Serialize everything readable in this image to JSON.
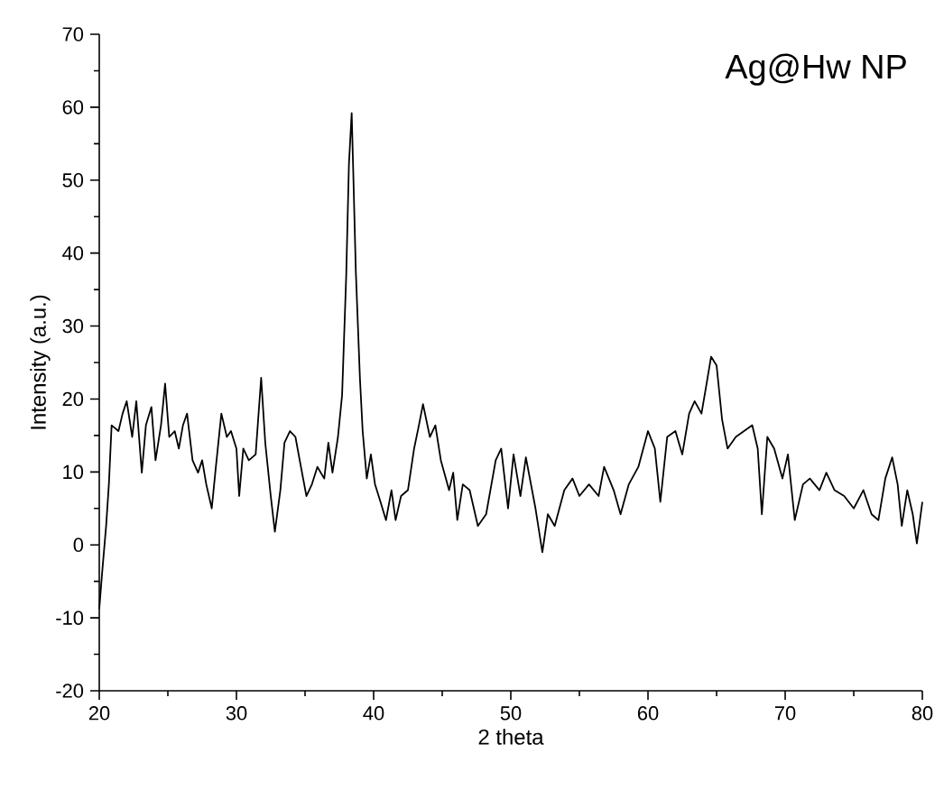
{
  "chart_data": {
    "type": "line",
    "xlabel": "2 theta",
    "ylabel": "Intensity (a.u.)",
    "annotations": [
      "Ag@Hw NP"
    ],
    "xlim": [
      20,
      80
    ],
    "ylim": [
      -20,
      70
    ],
    "xticks": [
      20,
      30,
      40,
      50,
      60,
      70,
      80
    ],
    "yticks": [
      -20,
      -10,
      0,
      10,
      20,
      30,
      40,
      50,
      60,
      70
    ],
    "marker": "none",
    "line_style": "solid",
    "series": [
      {
        "color": "#000000",
        "x": [
          20.0,
          20.2,
          20.5,
          20.7,
          20.9,
          21.4,
          21.7,
          22.0,
          22.4,
          22.7,
          23.1,
          23.4,
          23.8,
          24.1,
          24.5,
          24.8,
          25.1,
          25.5,
          25.8,
          26.1,
          26.4,
          26.8,
          27.2,
          27.5,
          27.8,
          28.2,
          28.5,
          28.9,
          29.3,
          29.6,
          30.0,
          30.2,
          30.5,
          30.9,
          31.4,
          31.8,
          32.1,
          32.5,
          32.8,
          33.2,
          33.5,
          33.9,
          34.3,
          34.7,
          35.1,
          35.5,
          35.9,
          36.4,
          36.7,
          37.0,
          37.4,
          37.7,
          38.0,
          38.2,
          38.4,
          38.5,
          38.7,
          39.0,
          39.2,
          39.5,
          39.8,
          40.1,
          40.5,
          40.9,
          41.3,
          41.6,
          42.0,
          42.5,
          42.95,
          43.3,
          43.6,
          44.1,
          44.5,
          44.9,
          45.5,
          45.8,
          46.1,
          46.5,
          47.0,
          47.6,
          48.2,
          48.9,
          49.3,
          49.8,
          50.2,
          50.7,
          51.1,
          51.8,
          52.3,
          52.7,
          53.2,
          53.9,
          54.5,
          55.0,
          55.7,
          56.4,
          56.8,
          57.5,
          58.0,
          58.6,
          59.3,
          60.0,
          60.5,
          60.9,
          61.4,
          62.0,
          62.5,
          63.0,
          63.4,
          63.9,
          64.2,
          64.6,
          65.0,
          65.4,
          65.8,
          66.4,
          67.0,
          67.6,
          68.0,
          68.3,
          68.7,
          69.2,
          69.8,
          70.2,
          70.7,
          71.3,
          71.8,
          72.5,
          73.0,
          73.6,
          74.3,
          75.0,
          75.7,
          76.3,
          76.8,
          77.3,
          77.8,
          78.2,
          78.5,
          78.9,
          79.3,
          79.6,
          80.0
        ],
        "values": [
          -8.8,
          -4,
          2.6,
          8.3,
          16.4,
          15.6,
          18,
          19.7,
          14.8,
          19.7,
          9.9,
          16.4,
          18.9,
          11.6,
          16.4,
          22.1,
          14.8,
          15.6,
          13.2,
          16.4,
          18,
          11.6,
          9.9,
          11.6,
          8.3,
          5,
          10.7,
          18,
          14.8,
          15.6,
          13.2,
          6.7,
          13.2,
          11.6,
          12.4,
          22.9,
          14,
          6.7,
          1.8,
          7.5,
          14,
          15.6,
          14.8,
          10.7,
          6.7,
          8.3,
          10.7,
          9.1,
          14,
          9.9,
          14.8,
          20.5,
          36.8,
          52.2,
          59.2,
          52.2,
          37.6,
          22.9,
          15.6,
          9.1,
          12.4,
          8.3,
          5.9,
          3.4,
          7.5,
          3.4,
          6.7,
          7.5,
          13.2,
          16.4,
          19.3,
          14.8,
          16.4,
          11.6,
          7.5,
          9.9,
          3.4,
          8.3,
          7.5,
          2.6,
          4.2,
          11.6,
          13.2,
          5,
          12.4,
          6.7,
          12,
          5,
          -1,
          4.2,
          2.6,
          7.5,
          9.1,
          6.7,
          8.3,
          6.7,
          10.7,
          7.5,
          4.2,
          8.3,
          10.7,
          15.6,
          13.2,
          5.9,
          14.8,
          15.6,
          12.4,
          18,
          19.7,
          18,
          21.3,
          25.8,
          24.6,
          17.2,
          13.2,
          14.8,
          15.6,
          16.4,
          13.2,
          4.2,
          14.8,
          13.2,
          9.1,
          12.4,
          3.4,
          8.3,
          9.1,
          7.5,
          9.9,
          7.5,
          6.7,
          5,
          7.5,
          4.2,
          3.4,
          9.1,
          12,
          8.3,
          2.6,
          7.5,
          4.2,
          0.2,
          5.9
        ]
      }
    ]
  }
}
